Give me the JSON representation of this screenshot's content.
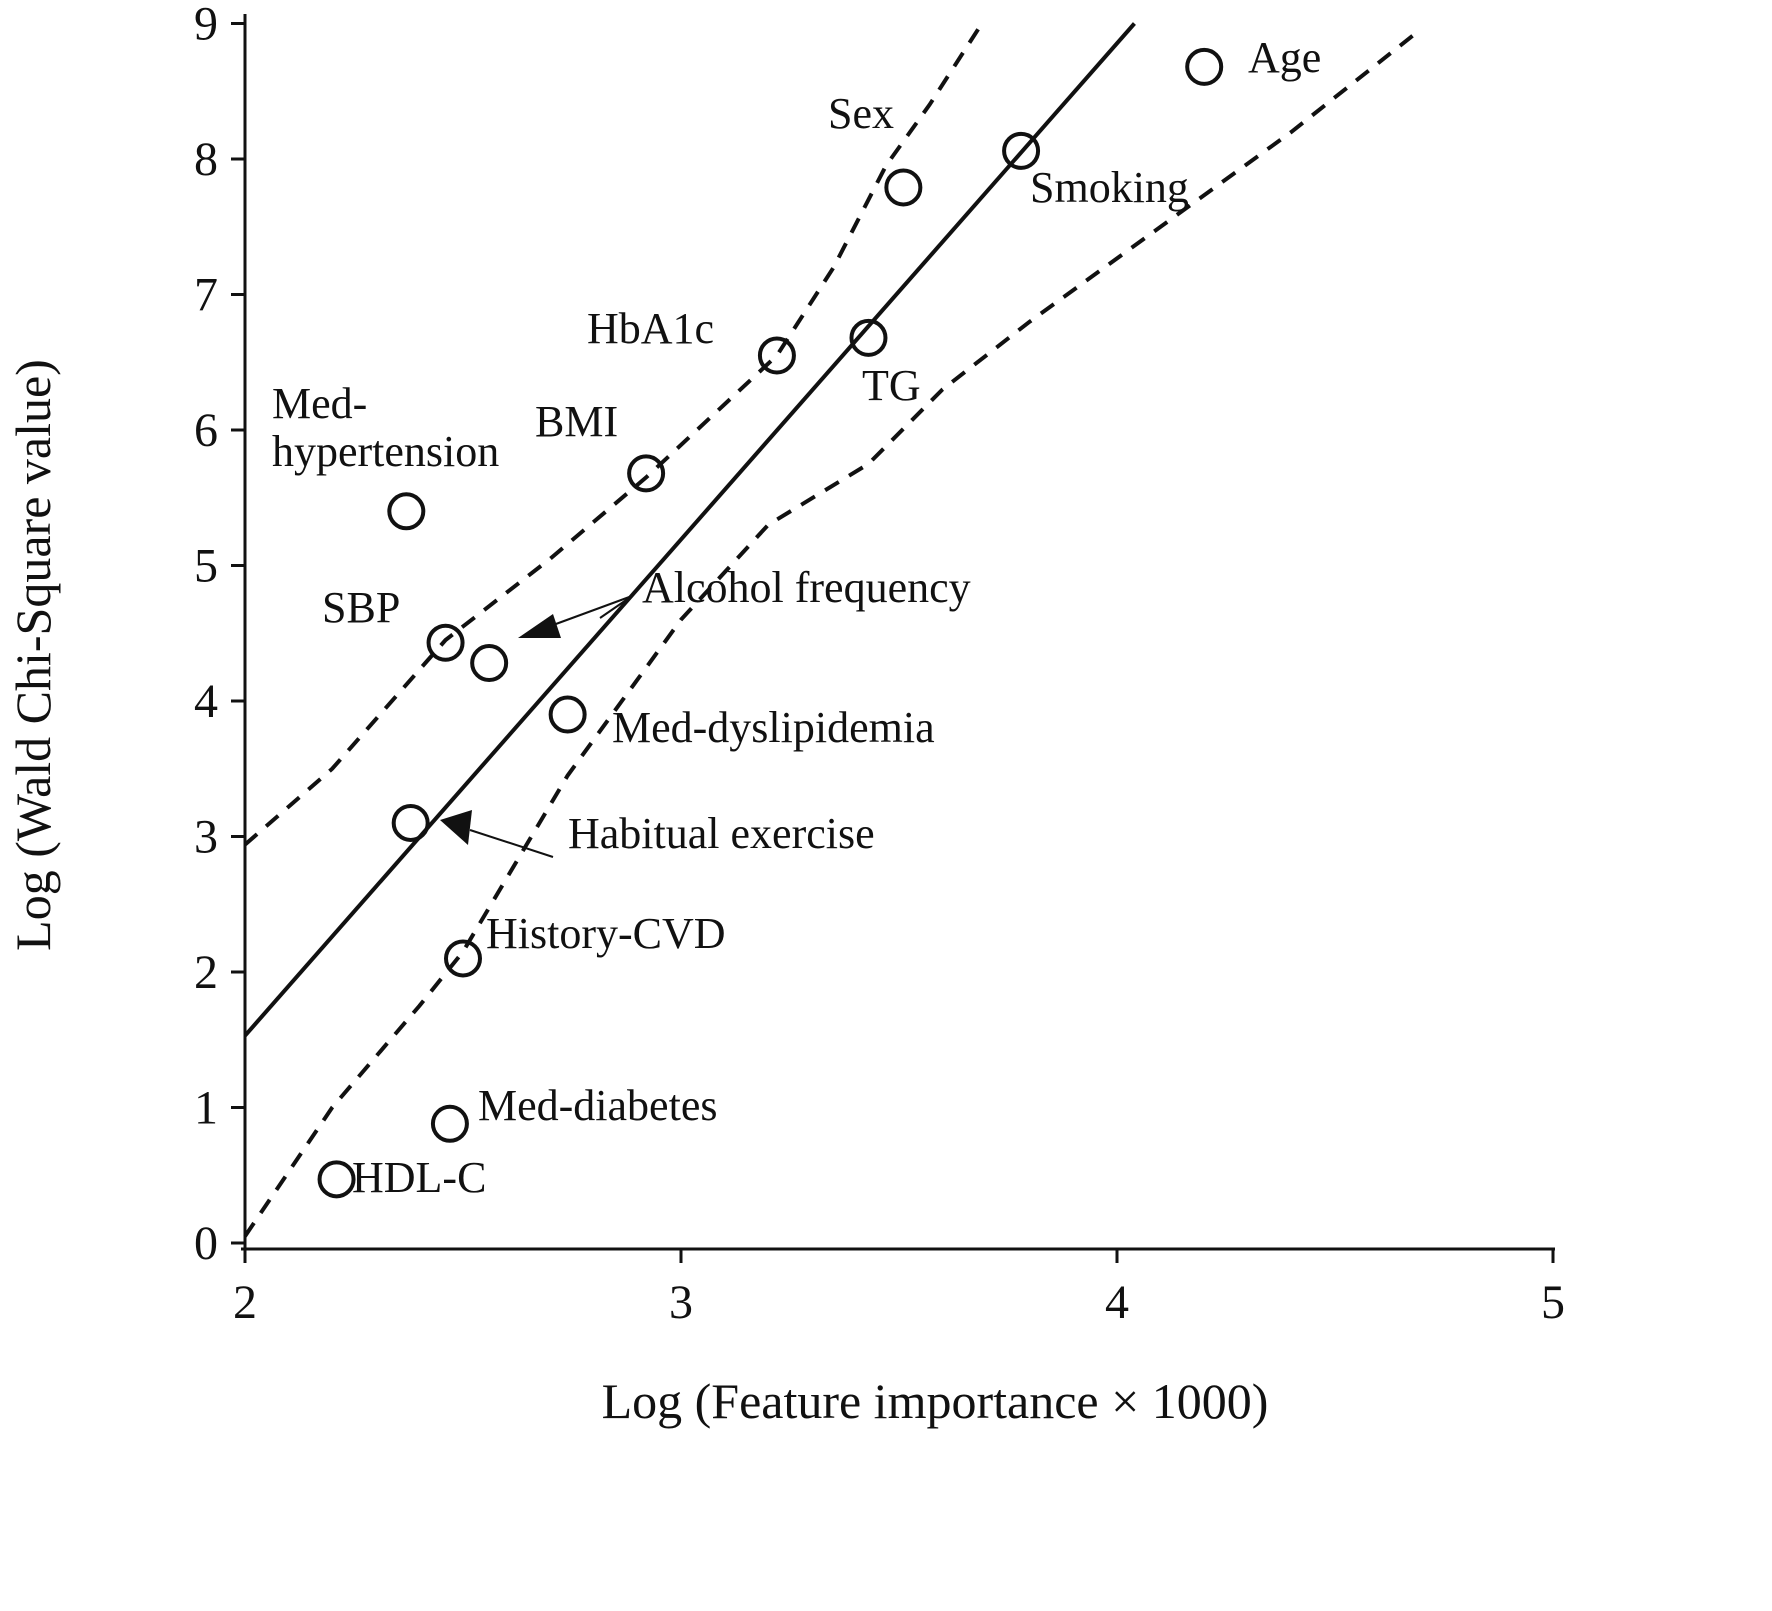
{
  "chart_data": {
    "type": "scatter",
    "title": "",
    "xlabel": "Log (Feature importance × 1000)",
    "ylabel": "Log (Wald Chi-Square value)",
    "xlim": [
      2,
      5
    ],
    "ylim": [
      0,
      9
    ],
    "xticks": [
      "2",
      "3",
      "4",
      "5"
    ],
    "yticks": [
      "0",
      "1",
      "2",
      "3",
      "4",
      "5",
      "6",
      "7",
      "8",
      "9"
    ],
    "grid": false,
    "points": [
      {
        "label": "Age",
        "x": 4.2,
        "y": 8.68
      },
      {
        "label": "Smoking",
        "x": 3.78,
        "y": 8.06
      },
      {
        "label": "Sex",
        "x": 3.51,
        "y": 7.79
      },
      {
        "label": "TG",
        "x": 3.43,
        "y": 6.68
      },
      {
        "label": "HbA1c",
        "x": 3.22,
        "y": 6.55
      },
      {
        "label": "BMI",
        "x": 2.92,
        "y": 5.68
      },
      {
        "label": "Med-hypertension",
        "x": 2.37,
        "y": 5.4
      },
      {
        "label": "SBP",
        "x": 2.46,
        "y": 4.43
      },
      {
        "label": "Alcohol frequency",
        "x": 2.56,
        "y": 4.28
      },
      {
        "label": "Med-dyslipidemia",
        "x": 2.74,
        "y": 3.9
      },
      {
        "label": "Habitual exercise",
        "x": 2.38,
        "y": 3.1
      },
      {
        "label": "History-CVD",
        "x": 2.5,
        "y": 2.1
      },
      {
        "label": "Med-diabetes",
        "x": 2.47,
        "y": 0.88
      },
      {
        "label": "HDL-C",
        "x": 2.21,
        "y": 0.47
      }
    ],
    "regression_line": {
      "x": [
        2.0,
        4.04
      ],
      "y": [
        1.53,
        9.0
      ]
    },
    "upper_band": {
      "x": [
        2.0,
        2.2,
        2.46,
        2.7,
        2.92,
        3.22,
        3.35,
        3.47,
        3.57,
        3.69
      ],
      "y": [
        2.94,
        3.5,
        4.45,
        5.05,
        5.65,
        6.55,
        7.2,
        7.95,
        8.4,
        9.0
      ]
    },
    "lower_band": {
      "x": [
        2.0,
        2.2,
        2.4,
        2.5,
        2.74,
        3.0,
        3.2,
        3.43,
        3.6,
        3.8,
        4.1,
        4.4,
        4.69
      ],
      "y": [
        0.05,
        1.0,
        1.75,
        2.15,
        3.45,
        4.6,
        5.3,
        5.75,
        6.3,
        6.8,
        7.5,
        8.2,
        8.94
      ]
    }
  }
}
